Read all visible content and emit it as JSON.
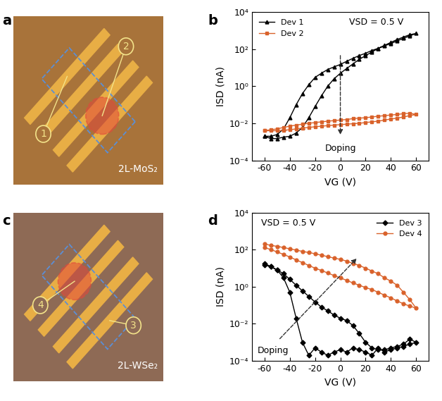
{
  "chart_data": [
    {
      "panel": "b",
      "type": "line",
      "x_label": "VG (V)",
      "y_label": "ISD (nA)",
      "log": "y",
      "xlim": [
        -70,
        70
      ],
      "ylim": [
        0.0001,
        10000
      ],
      "xticks": [
        -60,
        -40,
        -20,
        0,
        20,
        40,
        60
      ],
      "yticks": [
        {
          "value": 0.0001,
          "label": "10⁻⁴"
        },
        {
          "value": 0.01,
          "label": "10⁻²"
        },
        {
          "value": 1,
          "label": "10⁰"
        },
        {
          "value": 100,
          "label": "10²"
        },
        {
          "value": 10000,
          "label": "10⁴"
        }
      ],
      "annotations": [
        "VSD = 0.5 V",
        "Doping"
      ],
      "legend": "upper left",
      "x": [
        -60,
        -55,
        -50,
        -45,
        -40,
        -35,
        -30,
        -25,
        -20,
        -15,
        -10,
        -5,
        0,
        5,
        10,
        15,
        20,
        25,
        30,
        35,
        40,
        45,
        50,
        55,
        60,
        55,
        50,
        45,
        40,
        35,
        30,
        25,
        20,
        15,
        10,
        5,
        0,
        -5,
        -10,
        -15,
        -20,
        -25,
        -30,
        -35,
        -40,
        -45,
        -50,
        -55,
        -60
      ],
      "series": [
        {
          "name": "Dev 1",
          "color": "#000000",
          "marker": "triangle",
          "values": [
            0.002,
            0.002,
            0.0025,
            0.005,
            0.02,
            0.1,
            0.4,
            1.2,
            3,
            5,
            8,
            11,
            15,
            22,
            32,
            45,
            60,
            85,
            110,
            150,
            200,
            280,
            380,
            520,
            700,
            600,
            450,
            330,
            230,
            160,
            110,
            70,
            45,
            28,
            16,
            9,
            5,
            2.5,
            1,
            0.3,
            0.08,
            0.02,
            0.006,
            0.003,
            0.002,
            0.0018,
            0.0015,
            0.0015,
            0.002
          ]
        },
        {
          "name": "Dev 2",
          "color": "#d9622b",
          "marker": "square",
          "values": [
            0.004,
            0.004,
            0.004,
            0.0042,
            0.0045,
            0.005,
            0.0055,
            0.006,
            0.0065,
            0.007,
            0.0075,
            0.008,
            0.0085,
            0.009,
            0.0095,
            0.01,
            0.011,
            0.012,
            0.013,
            0.015,
            0.017,
            0.019,
            0.022,
            0.026,
            0.03,
            0.035,
            0.033,
            0.03,
            0.028,
            0.026,
            0.024,
            0.022,
            0.02,
            0.019,
            0.018,
            0.016,
            0.015,
            0.014,
            0.013,
            0.012,
            0.011,
            0.01,
            0.009,
            0.008,
            0.007,
            0.006,
            0.005,
            0.0045,
            0.004
          ]
        }
      ]
    },
    {
      "panel": "d",
      "type": "line",
      "x_label": "VG (V)",
      "y_label": "ISD (nA)",
      "log": "y",
      "xlim": [
        -70,
        70
      ],
      "ylim": [
        0.0001,
        10000
      ],
      "xticks": [
        -60,
        -40,
        -20,
        0,
        20,
        40,
        60
      ],
      "yticks": [
        {
          "value": 0.0001,
          "label": "10⁻⁴"
        },
        {
          "value": 0.01,
          "label": "10⁻²"
        },
        {
          "value": 1,
          "label": "10⁰"
        },
        {
          "value": 100,
          "label": "10²"
        },
        {
          "value": 10000,
          "label": "10⁴"
        }
      ],
      "annotations": [
        "VSD = 0.5 V",
        "Doping"
      ],
      "legend": "upper right",
      "x": [
        -60,
        -55,
        -50,
        -45,
        -40,
        -35,
        -30,
        -25,
        -20,
        -15,
        -10,
        -5,
        0,
        5,
        10,
        15,
        20,
        25,
        30,
        35,
        40,
        45,
        50,
        55,
        60,
        55,
        50,
        45,
        40,
        35,
        30,
        25,
        20,
        15,
        10,
        5,
        0,
        -5,
        -10,
        -15,
        -20,
        -25,
        -30,
        -35,
        -40,
        -45,
        -50,
        -55,
        -60
      ],
      "series": [
        {
          "name": "Dev 3",
          "color": "#000000",
          "marker": "diamond",
          "values": [
            15,
            12,
            8,
            3,
            0.5,
            0.02,
            0.001,
            0.0002,
            0.0005,
            0.0003,
            0.0002,
            0.0003,
            0.0004,
            0.0003,
            0.0005,
            0.0004,
            0.0003,
            0.0002,
            0.0005,
            0.0003,
            0.0004,
            0.0005,
            0.0006,
            0.0008,
            0.001,
            0.0015,
            0.0008,
            0.0006,
            0.0005,
            0.0004,
            0.0004,
            0.0005,
            0.001,
            0.003,
            0.008,
            0.015,
            0.02,
            0.03,
            0.05,
            0.08,
            0.15,
            0.3,
            0.6,
            1.2,
            2.5,
            5,
            8,
            12,
            18
          ]
        },
        {
          "name": "Dev 4",
          "color": "#d9622b",
          "marker": "circle",
          "values": [
            200,
            170,
            150,
            130,
            110,
            95,
            80,
            70,
            60,
            50,
            42,
            35,
            30,
            24,
            18,
            14,
            10,
            7,
            5,
            3,
            2,
            1.2,
            0.5,
            0.2,
            0.07,
            0.09,
            0.12,
            0.17,
            0.25,
            0.35,
            0.5,
            0.7,
            0.9,
            1.2,
            1.6,
            2.2,
            3,
            4,
            5.5,
            7.5,
            10,
            14,
            20,
            28,
            40,
            55,
            75,
            100,
            130
          ]
        }
      ]
    }
  ],
  "images": [
    {
      "panel": "a",
      "markers": [
        "1",
        "2"
      ],
      "caption": "2L-MoS₂"
    },
    {
      "panel": "c",
      "markers": [
        "4",
        "3"
      ],
      "caption": "2L-WSe₂"
    }
  ]
}
